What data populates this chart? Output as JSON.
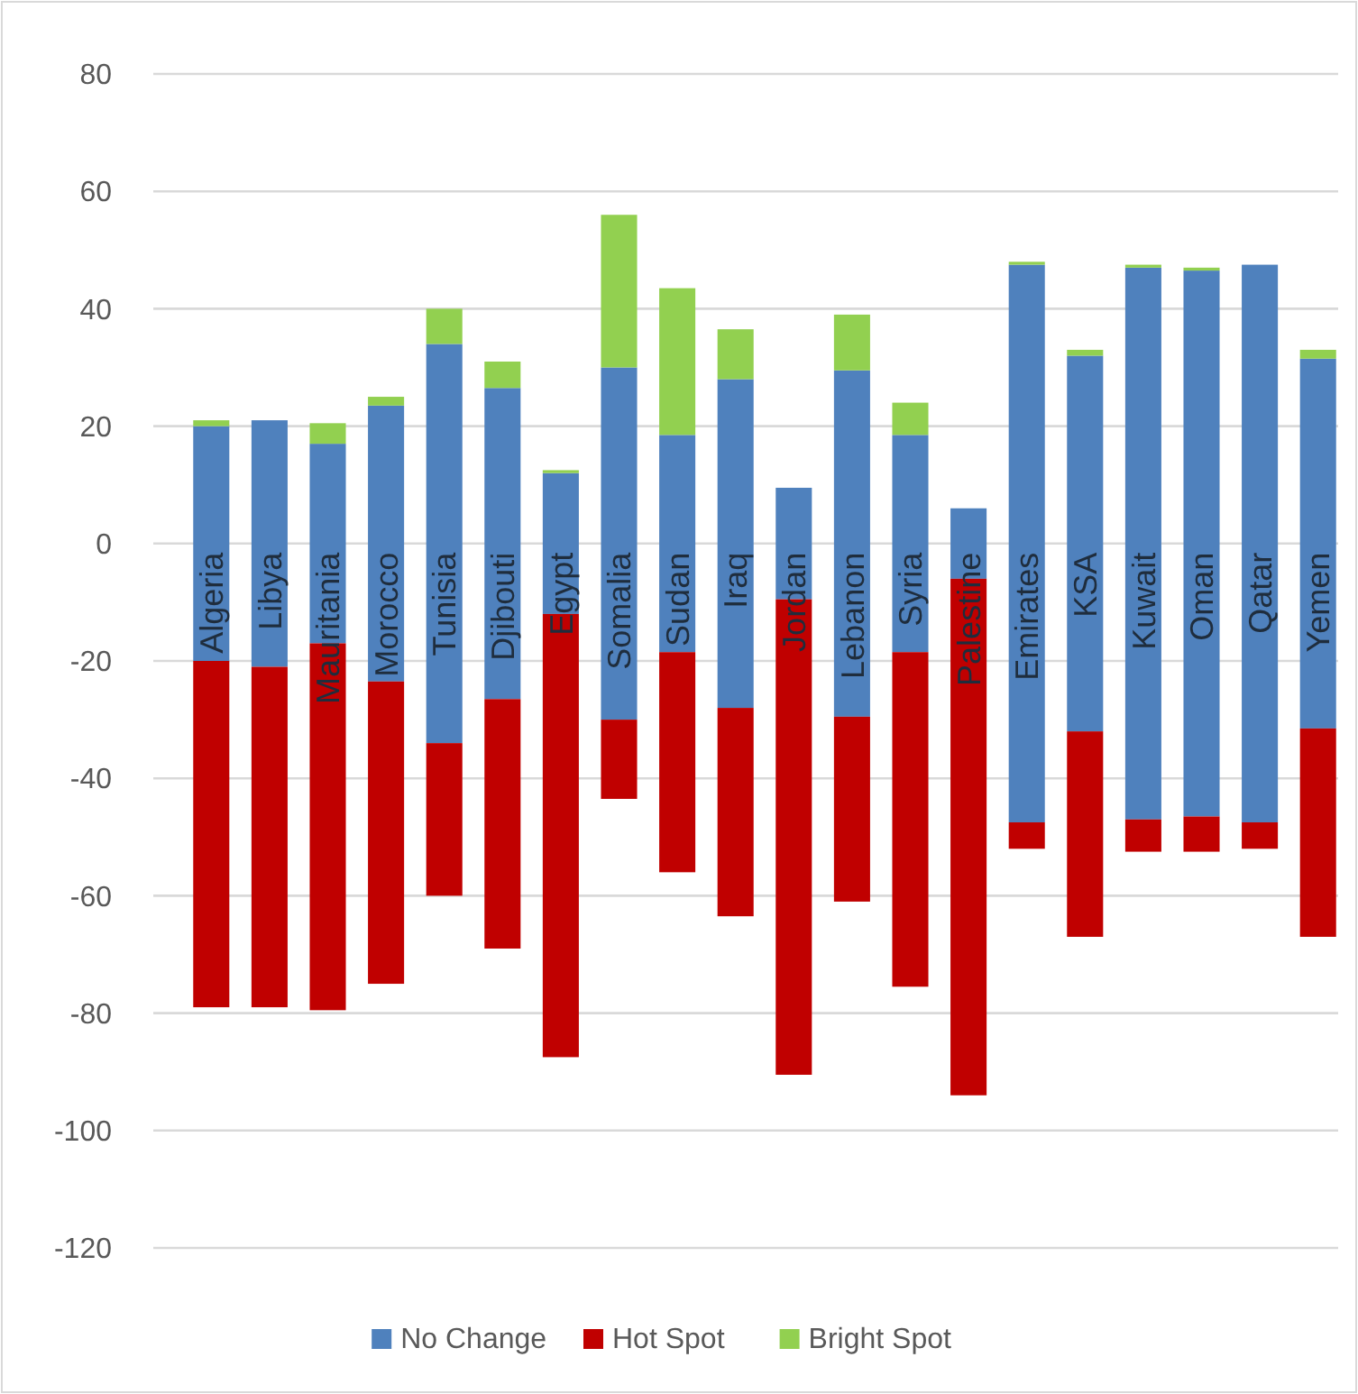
{
  "chart_data": {
    "type": "bar",
    "categories": [
      "Algeria",
      "Libya",
      "Mauritania",
      "Morocco",
      "Tunisia",
      "Djibouti",
      "Egypt",
      "Somalia",
      "Sudan",
      "Iraq",
      "Jordan",
      "Lebanon",
      "Syria",
      "Palestine",
      "Emirates",
      "KSA",
      "Kuwait",
      "Oman",
      "Qatar",
      "Yemen"
    ],
    "series": [
      {
        "name": "No Change",
        "color": "#4f81bd",
        "base": [
          -20,
          -21,
          -17,
          -23.5,
          -34,
          -26.5,
          -12,
          -30,
          -18.5,
          -28,
          -9.5,
          -29.5,
          -18.5,
          -6,
          -47.5,
          -32,
          -47,
          -46.5,
          -47.5,
          -31.5
        ],
        "values": [
          40,
          42,
          34,
          47,
          68,
          53,
          24,
          60,
          37,
          56,
          19,
          59,
          37,
          12,
          95,
          64,
          94,
          93,
          95,
          63
        ]
      },
      {
        "name": "Hot Spot",
        "color": "#c00000",
        "base": [
          -79,
          -79,
          -79.5,
          -75,
          -60,
          -69,
          -87.5,
          -43.5,
          -56,
          -63.5,
          -90.5,
          -61,
          -75.5,
          -94,
          -52,
          -67,
          -52.5,
          -52.5,
          -52,
          -67
        ],
        "values": [
          59,
          58,
          62.5,
          51.5,
          26,
          42.5,
          75.5,
          13.5,
          37.5,
          35.5,
          81,
          31.5,
          57,
          88,
          4.5,
          35,
          5.5,
          6,
          4.5,
          35.5
        ]
      },
      {
        "name": "Bright Spot",
        "color": "#92d050",
        "base": [
          20,
          null,
          17,
          23.5,
          34,
          26.5,
          12,
          30,
          18.5,
          28,
          null,
          29.5,
          18.5,
          null,
          47.5,
          32,
          47,
          46.5,
          null,
          31.5
        ],
        "values": [
          1,
          null,
          3.5,
          1.5,
          6,
          4.5,
          0.5,
          26,
          25,
          8.5,
          null,
          9.5,
          5.5,
          null,
          0.5,
          1,
          0.5,
          0.5,
          null,
          1.5
        ]
      }
    ],
    "ylim": [
      -120,
      80
    ],
    "yticks": [
      -120,
      -100,
      -80,
      -60,
      -40,
      -20,
      0,
      20,
      40,
      60,
      80
    ],
    "grid": "y",
    "legend": "bottom"
  }
}
